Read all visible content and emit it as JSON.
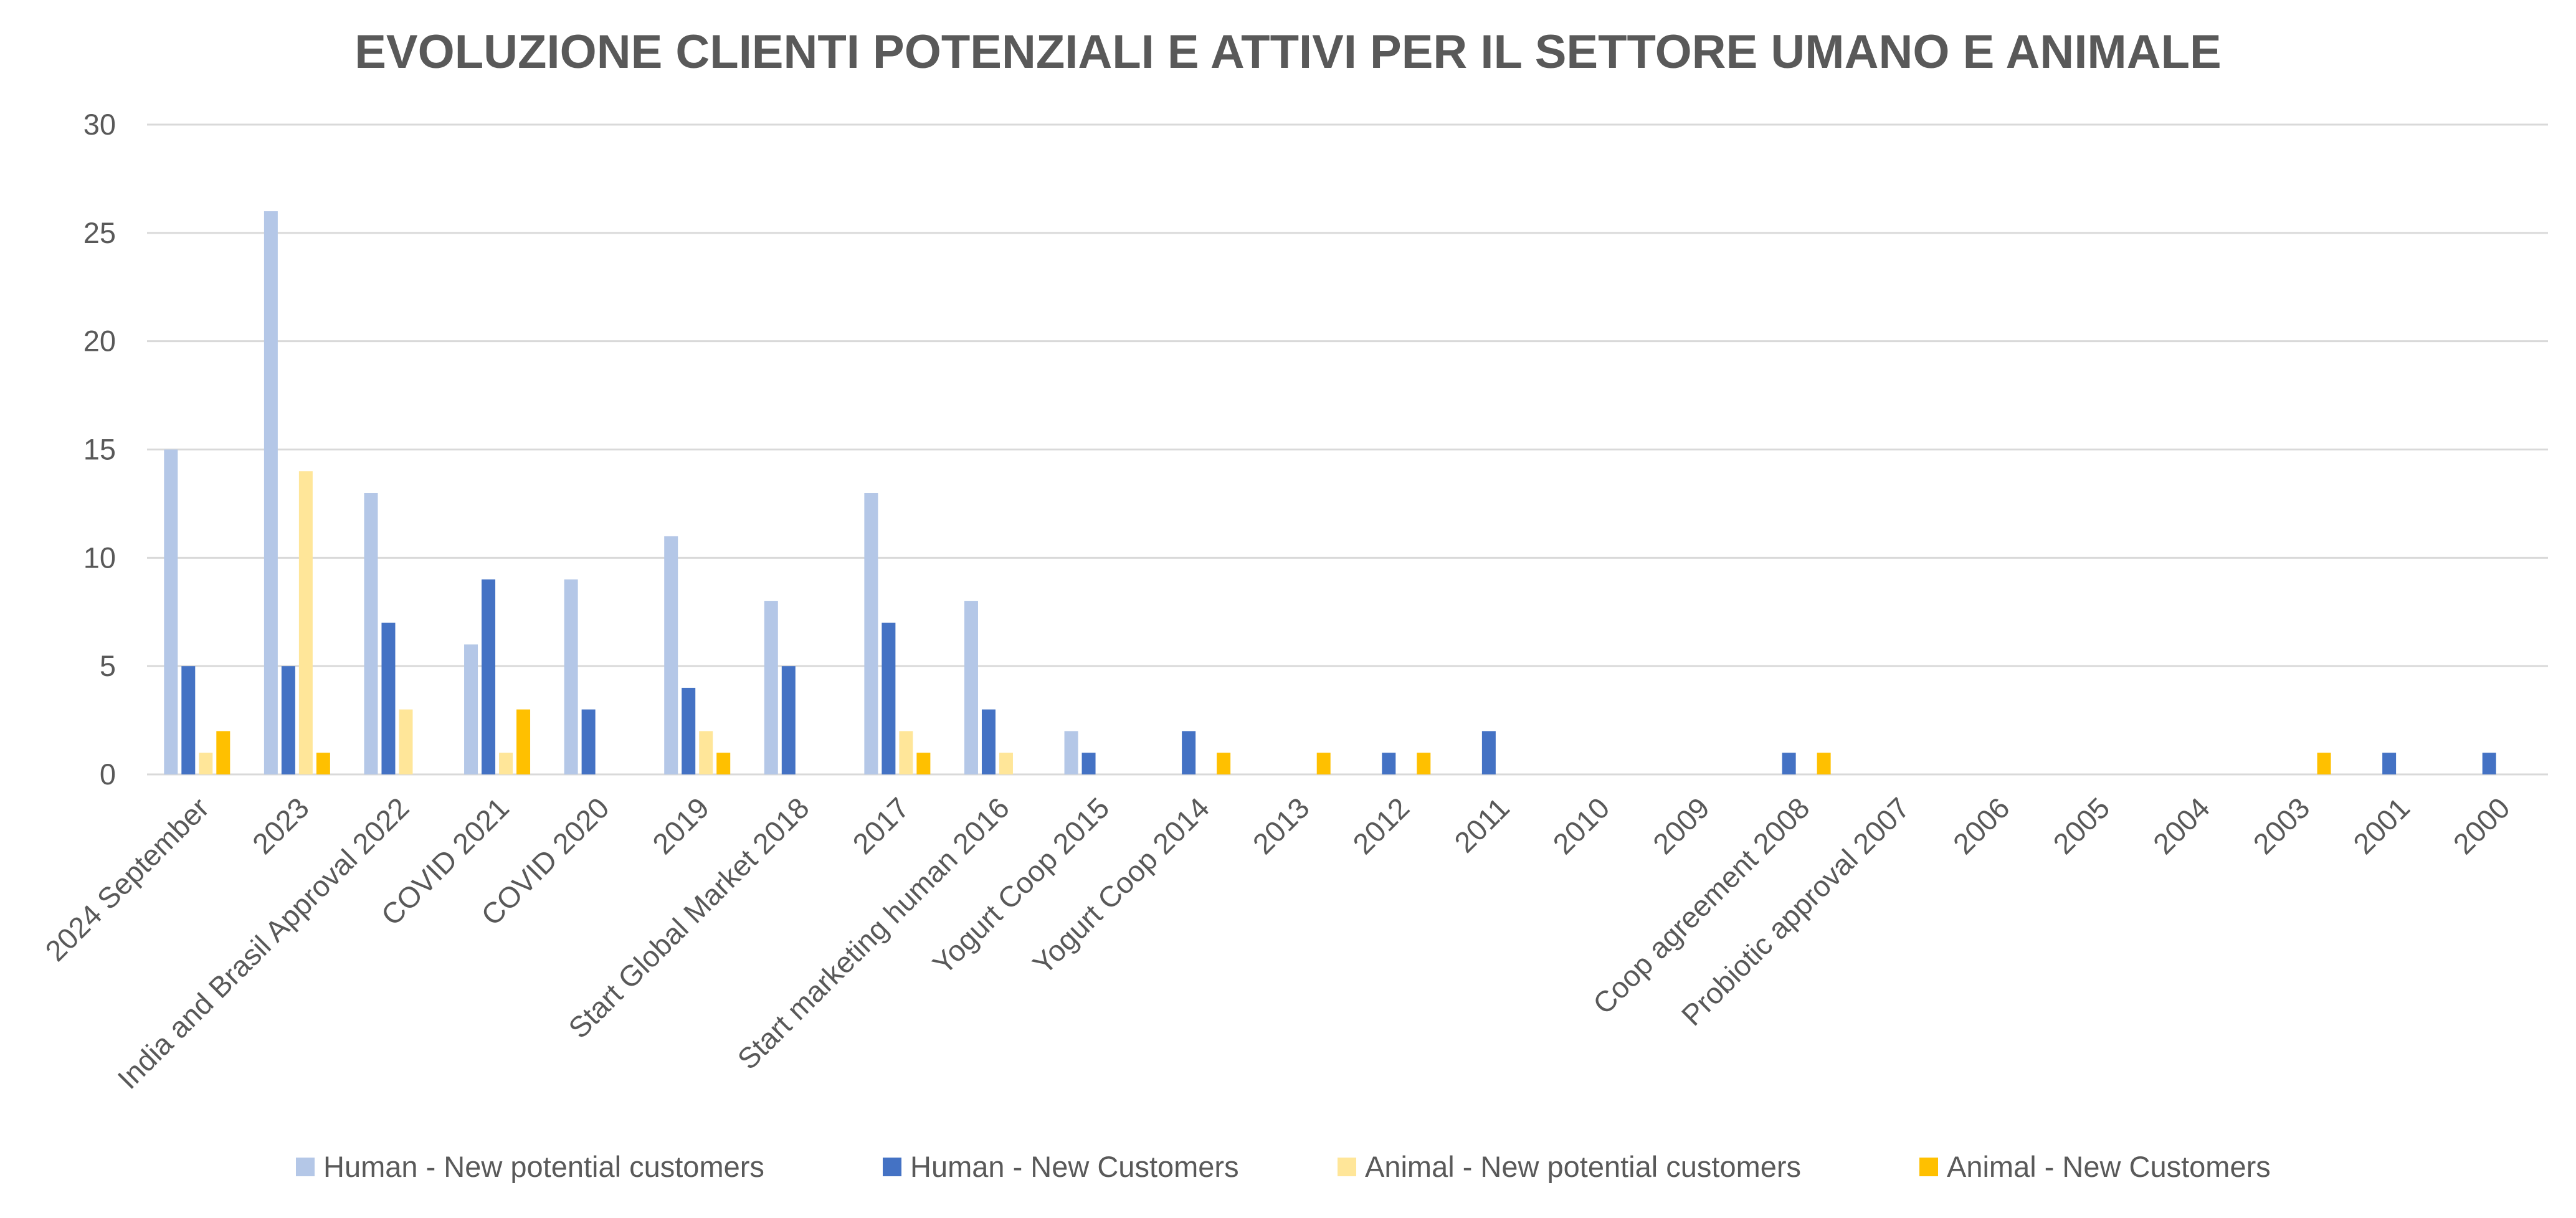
{
  "chart_data": {
    "type": "bar",
    "title": "EVOLUZIONE CLIENTI POTENZIALI E ATTIVI PER IL SETTORE UMANO E ANIMALE",
    "xlabel": "",
    "ylabel": "",
    "ylim": [
      0,
      30
    ],
    "yticks": [
      "0",
      "5",
      "10",
      "15",
      "20",
      "25",
      "30"
    ],
    "grid": true,
    "legend_position": "bottom",
    "categories": [
      "2024 September",
      "2023",
      "India and Brasil Approval 2022",
      "COVID 2021",
      "COVID 2020",
      "2019",
      "Start Global Market 2018",
      "2017",
      "Start marketing human 2016",
      "Yogurt Coop 2015",
      "Yogurt Coop 2014",
      "2013",
      "2012",
      "2011",
      "2010",
      "2009",
      "Coop agreement 2008",
      "Probiotic approval 2007",
      "2006",
      "2005",
      "2004",
      "2003",
      "2001",
      "2000"
    ],
    "series": [
      {
        "name": "Human - New potential customers",
        "color": "#B4C7E7",
        "values": [
          15,
          26,
          13,
          6,
          9,
          11,
          8,
          13,
          8,
          2,
          0,
          0,
          0,
          0,
          0,
          0,
          0,
          0,
          0,
          0,
          0,
          0,
          0,
          0
        ]
      },
      {
        "name": "Human - New Customers",
        "color": "#4472C4",
        "values": [
          5,
          5,
          7,
          9,
          3,
          4,
          5,
          7,
          3,
          1,
          2,
          0,
          1,
          2,
          0,
          0,
          1,
          0,
          0,
          0,
          0,
          0,
          1,
          1
        ]
      },
      {
        "name": "Animal - New potential customers",
        "color": "#FFE699",
        "values": [
          1,
          14,
          3,
          1,
          0,
          2,
          0,
          2,
          1,
          0,
          0,
          0,
          0,
          0,
          0,
          0,
          0,
          0,
          0,
          0,
          0,
          0,
          0,
          0
        ]
      },
      {
        "name": "Animal - New Customers",
        "color": "#FFC000",
        "values": [
          2,
          1,
          0,
          3,
          0,
          1,
          0,
          1,
          0,
          0,
          1,
          1,
          1,
          0,
          0,
          0,
          1,
          0,
          0,
          0,
          0,
          1,
          0,
          0
        ]
      }
    ]
  },
  "colors": {
    "gridline": "#D9D9D9",
    "axis_text": "#595959"
  }
}
